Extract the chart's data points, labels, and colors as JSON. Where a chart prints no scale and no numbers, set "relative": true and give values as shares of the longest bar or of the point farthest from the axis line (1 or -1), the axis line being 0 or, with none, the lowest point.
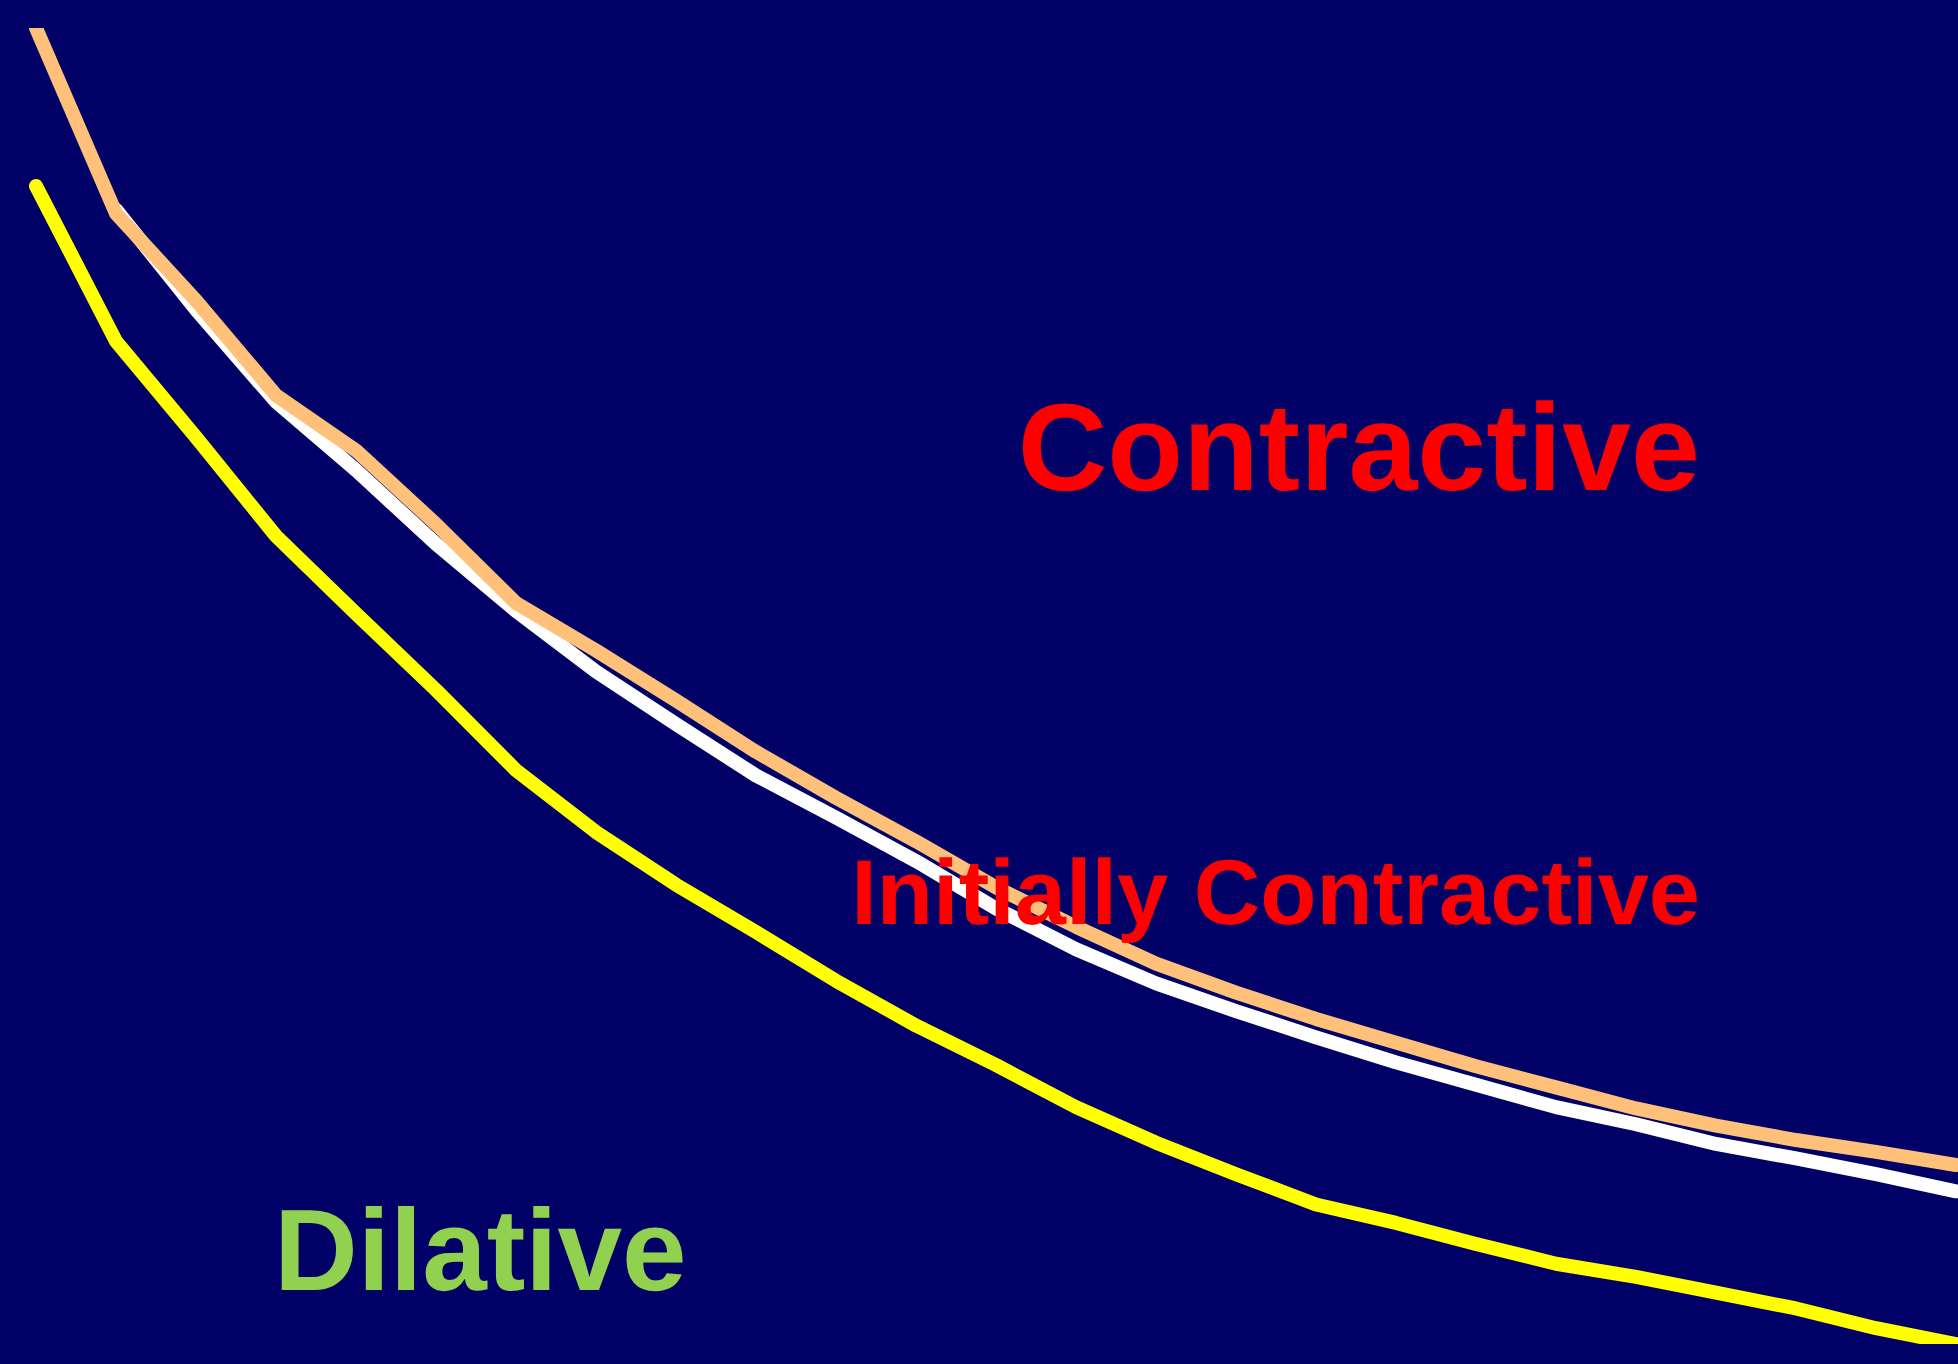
{
  "chart_data": {
    "type": "line",
    "relative": true,
    "marker": "none",
    "categories": [
      null,
      null,
      null,
      null,
      null,
      null,
      null,
      null,
      null,
      null,
      null,
      null,
      null,
      null,
      null,
      null,
      null,
      null,
      null,
      null,
      null,
      null,
      null,
      null,
      null
    ],
    "series": [
      {
        "color": "#ffc07a",
        "values": [
          1.0,
          0.859,
          0.793,
          0.721,
          0.679,
          0.623,
          0.563,
          0.527,
          0.489,
          0.45,
          0.415,
          0.382,
          0.347,
          0.317,
          0.289,
          0.267,
          0.247,
          0.229,
          0.211,
          0.195,
          0.179,
          0.166,
          0.155,
          0.146,
          0.136
        ]
      },
      {
        "color": "#ffffff",
        "values": [
          null,
          0.862,
          0.786,
          0.716,
          0.664,
          0.608,
          0.557,
          0.511,
          0.471,
          0.432,
          0.4,
          0.367,
          0.331,
          0.3,
          0.274,
          0.253,
          0.233,
          0.214,
          0.197,
          0.18,
          0.167,
          0.152,
          0.141,
          0.129,
          0.116
        ]
      },
      {
        "color": "#ffff00",
        "values": [
          0.88,
          0.762,
          0.689,
          0.614,
          0.555,
          0.497,
          0.436,
          0.389,
          0.349,
          0.313,
          0.276,
          0.242,
          0.212,
          0.18,
          0.153,
          0.129,
          0.106,
          0.092,
          0.076,
          0.061,
          0.051,
          0.039,
          0.027,
          0.012,
          0
        ]
      }
    ],
    "annotations": [
      "Contractive",
      "Initially Contractive",
      "Dilative"
    ]
  }
}
